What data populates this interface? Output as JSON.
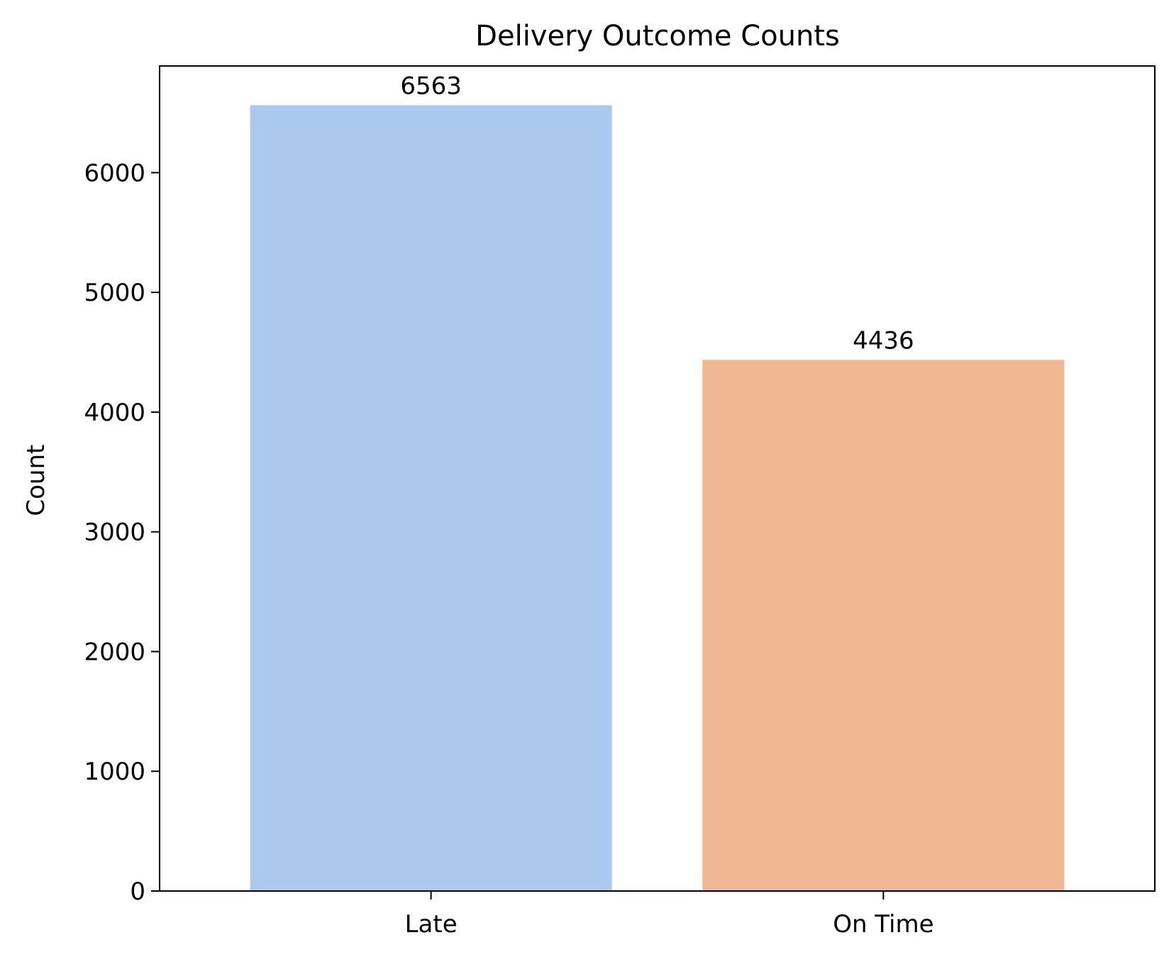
{
  "chart_data": {
    "type": "bar",
    "title": "Delivery Outcome Counts",
    "xlabel": "",
    "ylabel": "Count",
    "categories": [
      "Late",
      "On Time"
    ],
    "values": [
      6563,
      4436
    ],
    "value_labels": [
      "6563",
      "4436"
    ],
    "colors": [
      "#abc9ec",
      "#f0b793"
    ],
    "ylim": [
      0,
      6891
    ],
    "yticks": [
      0,
      1000,
      2000,
      3000,
      4000,
      5000,
      6000
    ],
    "ytick_labels": [
      "0",
      "1000",
      "2000",
      "3000",
      "4000",
      "5000",
      "6000"
    ],
    "grid": false,
    "legend": "none"
  }
}
